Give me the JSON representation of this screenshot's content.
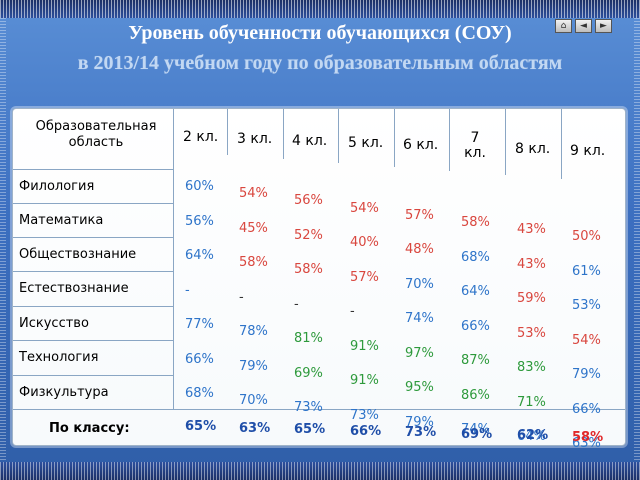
{
  "title": "Уровень обученности обучающихся (СОУ)",
  "subtitle": "в 2013/14 учебном году по образовательным областям",
  "nav": {
    "home_label": "⌂",
    "prev_label": "◄",
    "next_label": "►"
  },
  "table": {
    "area_header": "Образовательная область",
    "grades": [
      "2 кл.",
      "3 кл.",
      "4 кл.",
      "5 кл.",
      "6 кл.",
      "7 кл.",
      "8 кл.",
      "9 кл."
    ],
    "rows": [
      {
        "subject": "Филология",
        "values": [
          "60%",
          "54%",
          "56%",
          "54%",
          "57%",
          "58%",
          "43%",
          "50%"
        ]
      },
      {
        "subject": "Математика",
        "values": [
          "56%",
          "45%",
          "52%",
          "40%",
          "48%",
          "68%",
          "43%",
          "61%"
        ]
      },
      {
        "subject": "Обществознание",
        "values": [
          "64%",
          "58%",
          "58%",
          "57%",
          "70%",
          "64%",
          "59%",
          "53%"
        ]
      },
      {
        "subject": "Естествознание",
        "values": [
          "-",
          "-",
          "-",
          "-",
          "74%",
          "66%",
          "53%",
          "54%"
        ]
      },
      {
        "subject": "Искусство",
        "values": [
          "77%",
          "78%",
          "81%",
          "91%",
          "97%",
          "87%",
          "83%",
          "79%"
        ]
      },
      {
        "subject": "Технология",
        "values": [
          "66%",
          "79%",
          "69%",
          "91%",
          "95%",
          "86%",
          "71%",
          "66%"
        ]
      },
      {
        "subject": "Физкультура",
        "values": [
          "68%",
          "70%",
          "73%",
          "73%",
          "79%",
          "74%",
          "64%",
          "63%"
        ]
      }
    ],
    "total_label": "По классу:",
    "totals": [
      "65%",
      "63%",
      "65%",
      "66%",
      "73%",
      "69%",
      "62%",
      "58%"
    ]
  },
  "colors": {
    "g2": "#2e74c9",
    "g3": "#d9473f",
    "g4": "#d9473f",
    "g5": "#d9473f",
    "g6": "#d9473f",
    "g7": "#d9473f",
    "g8": "#d9473f",
    "g9": "#d9473f",
    "blue": "#2e74c9",
    "red": "#d9473f",
    "green": "#2e9a3c",
    "totalBlue": "#1f4ea8",
    "totalRed": "#e0282a"
  }
}
